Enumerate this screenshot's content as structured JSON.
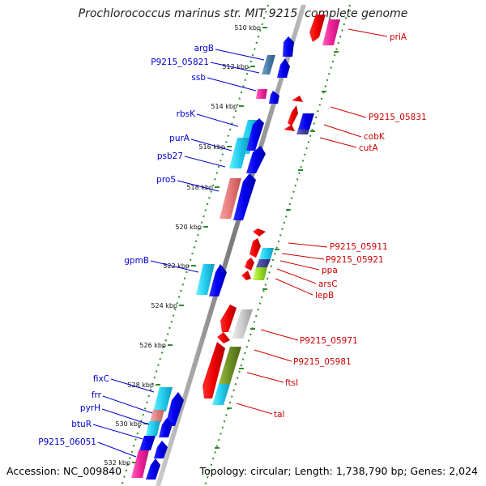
{
  "title": "Prochlorococcus marinus str. MIT 9215, complete genome",
  "footer": {
    "accession": "Accession: NC_009840",
    "topology": "Topology: circular; Length: 1,738,790 bp; Genes: 2,024"
  },
  "colors": {
    "left_label": "#0000cc",
    "right_label": "#cc0000",
    "kbp_tick": "#2e8b2e",
    "backbone": "#888888"
  },
  "kbp_labels": [
    "510 kbp",
    "512 kbp",
    "514 kbp",
    "516 kbp",
    "518 kbp",
    "520 kbp",
    "522 kbp",
    "524 kbp",
    "526 kbp",
    "528 kbp",
    "530 kbp",
    "532 kbp"
  ],
  "left_gene_labels": [
    "argB",
    "P9215_05821",
    "ssb",
    "rbsK",
    "purA",
    "psb27",
    "proS",
    "gpmB",
    "fixC",
    "frr",
    "pyrH",
    "btuR",
    "P9215_06051"
  ],
  "right_gene_labels": [
    "priA",
    "P9215_05831",
    "cobK",
    "cutA",
    "P9215_05911",
    "P9215_05921",
    "ppa",
    "arsC",
    "lepB",
    "P9215_05971",
    "P9215_05981",
    "ftsI",
    "tal"
  ]
}
